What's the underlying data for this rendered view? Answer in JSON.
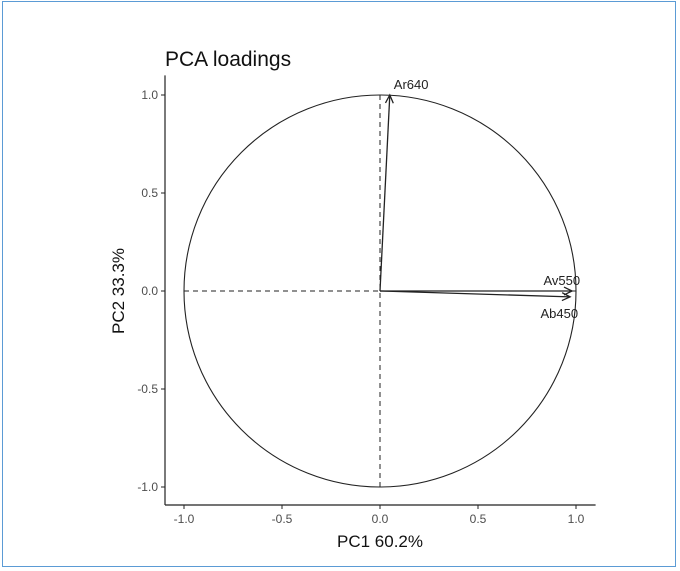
{
  "chart_data": {
    "type": "scatter",
    "title": "PCA loadings",
    "xlabel": "PC1 60.2%",
    "ylabel": "PC2 33.3%",
    "xlim": [
      -1.1,
      1.1
    ],
    "ylim": [
      -1.1,
      1.1
    ],
    "x_ticks": [
      "-1.0",
      "-0.5",
      "0.0",
      "0.5",
      "1.0"
    ],
    "y_ticks": [
      "-1.0",
      "-0.5",
      "0.0",
      "0.5",
      "1.0"
    ],
    "grid": false,
    "unit_circle": true,
    "reference_lines": [
      0
    ],
    "vectors": [
      {
        "label": "Ar640",
        "x": 0.05,
        "y": 1.0
      },
      {
        "label": "Av550",
        "x": 0.98,
        "y": 0.0
      },
      {
        "label": "Ab450",
        "x": 0.97,
        "y": -0.03
      }
    ]
  },
  "colors": {
    "frame": "#5b9bd5",
    "ink": "#222222",
    "tick_text": "#4d4d4d"
  }
}
